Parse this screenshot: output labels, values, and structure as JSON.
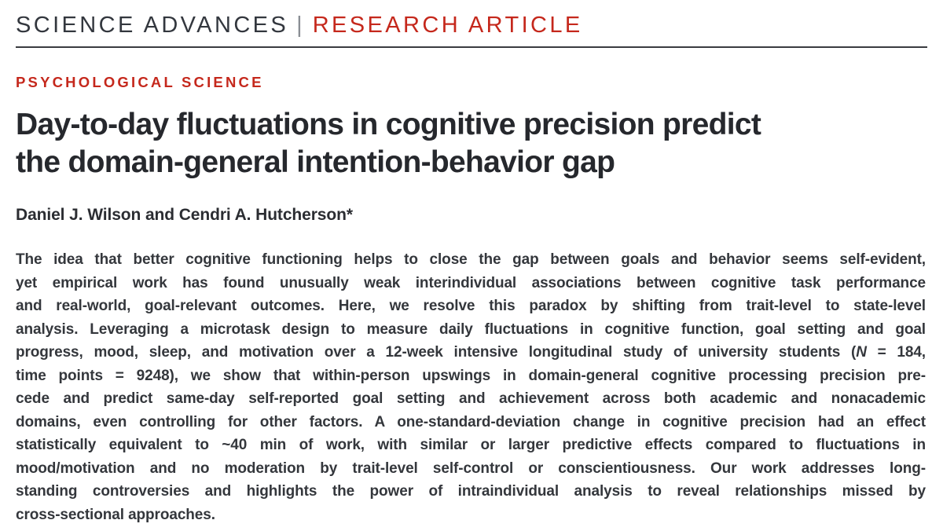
{
  "masthead": {
    "journal": "SCIENCE ADVANCES",
    "separator": "|",
    "article_type": "RESEARCH ARTICLE"
  },
  "section_label": "PSYCHOLOGICAL SCIENCE",
  "article": {
    "title_lines": [
      "Day-to-day fluctuations in cognitive precision predict",
      "the domain-general intention-behavior gap"
    ],
    "authors": "Daniel J. Wilson and Cendri A. Hutcherson*",
    "abstract_lines": [
      [
        {
          "t": "The idea that better cognitive functioning helps to close the gap between goals and behavior seems self-evident,"
        }
      ],
      [
        {
          "t": "yet empirical work has found unusually weak interindividual associations between cognitive task performance"
        }
      ],
      [
        {
          "t": "and real-world, goal-relevant outcomes. Here, we resolve this paradox by shifting from trait-level to state-level"
        }
      ],
      [
        {
          "t": "analysis. Leveraging a microtask design to measure daily fluctuations in cognitive function, goal setting and goal"
        }
      ],
      [
        {
          "t": "progress, mood, sleep, and motivation over a 12-week intensive longitudinal study of university students ("
        },
        {
          "t": "N",
          "i": true
        },
        {
          "t": " = 184,"
        }
      ],
      [
        {
          "t": "time points = 9248), we show that within-person upswings in domain-general cognitive processing precision pre-"
        }
      ],
      [
        {
          "t": "cede and predict same-day self-reported goal setting and achievement across both academic and nonacademic"
        }
      ],
      [
        {
          "t": "domains, even controlling for other factors. A one-standard-deviation change in cognitive precision had an effect"
        }
      ],
      [
        {
          "t": "statistically equivalent to ~40 min of work, with similar or larger predictive effects compared to fluctuations in"
        }
      ],
      [
        {
          "t": "mood/motivation and no moderation by trait-level self-control or conscientiousness. Our work addresses long-"
        }
      ],
      [
        {
          "t": "standing controversies and highlights the power of intraindividual analysis to reveal relationships missed by"
        }
      ],
      [
        {
          "t": "cross-sectional approaches."
        }
      ]
    ]
  },
  "colors": {
    "accent_red": "#c5281c",
    "masthead_dark": "#33373e",
    "title_dark": "#26282d",
    "body_text": "#34373c",
    "rule_dark": "#3a3c40",
    "separator_gray": "#8a8e94",
    "background": "#ffffff"
  }
}
